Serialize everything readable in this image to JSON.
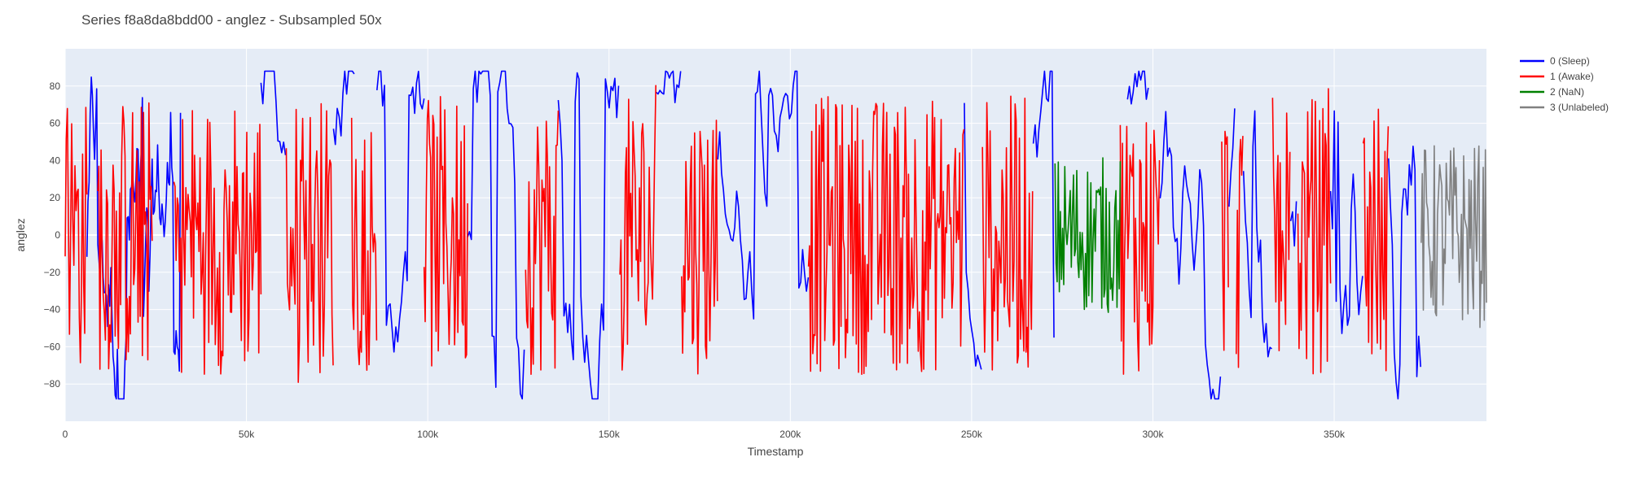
{
  "chart_data": {
    "type": "line",
    "title": "Series f8a8da8bdd00 - anglez - Subsampled 50x",
    "xlabel": "Timestamp",
    "ylabel": "anglez",
    "xlim": [
      0,
      392000
    ],
    "ylim": [
      -100,
      100
    ],
    "x_ticks": [
      0,
      50000,
      100000,
      150000,
      200000,
      250000,
      300000,
      350000
    ],
    "x_tick_labels": [
      "0",
      "50k",
      "100k",
      "150k",
      "200k",
      "250k",
      "300k",
      "350k"
    ],
    "y_ticks": [
      -80,
      -60,
      -40,
      -20,
      0,
      20,
      40,
      60,
      80
    ],
    "y_tick_labels": [
      "−80",
      "−60",
      "−40",
      "−20",
      "0",
      "20",
      "40",
      "60",
      "80"
    ],
    "grid": true,
    "legend_position": "top-right",
    "series": [
      {
        "name": "0 (Sleep)",
        "color": "#0000ff",
        "segments": [
          [
            6000,
            32000
          ],
          [
            54000,
            61000
          ],
          [
            74000,
            80000
          ],
          [
            86000,
            99000
          ],
          [
            111000,
            127000
          ],
          [
            136000,
            153000
          ],
          [
            163000,
            170000
          ],
          [
            180000,
            205000
          ],
          [
            248000,
            253000
          ],
          [
            267000,
            273000
          ],
          [
            293000,
            299000
          ],
          [
            302000,
            319000
          ],
          [
            321000,
            323000
          ],
          [
            325000,
            333000
          ],
          [
            338000,
            340000
          ],
          [
            349000,
            358000
          ],
          [
            365000,
            374000
          ]
        ],
        "segment_styles": [
          "lowmix",
          "high",
          "high",
          "high",
          "mid",
          "high",
          "high",
          "high",
          "high",
          "high",
          "high",
          "mid",
          "mid",
          "mid",
          "mid",
          "mid",
          "mid"
        ]
      },
      {
        "name": "1 (Awake)",
        "color": "#ff0000",
        "segments": [
          [
            0,
            6000
          ],
          [
            9000,
            24000
          ],
          [
            30000,
            54000
          ],
          [
            61000,
            74000
          ],
          [
            79000,
            86000
          ],
          [
            99000,
            111000
          ],
          [
            127000,
            136000
          ],
          [
            153000,
            163000
          ],
          [
            170000,
            180000
          ],
          [
            205000,
            248000
          ],
          [
            253000,
            267000
          ],
          [
            291000,
            302000
          ],
          [
            319000,
            321000
          ],
          [
            323000,
            325000
          ],
          [
            333000,
            338000
          ],
          [
            340000,
            349000
          ],
          [
            358000,
            365000
          ]
        ],
        "segment_styles": [
          "red",
          "red",
          "red",
          "red",
          "red",
          "red",
          "red",
          "red",
          "red",
          "red",
          "red",
          "red",
          "red",
          "red",
          "red",
          "red",
          "red"
        ]
      },
      {
        "name": "2 (NaN)",
        "color": "#008000",
        "segments": [
          [
            273000,
            291000
          ]
        ],
        "segment_styles": [
          "green"
        ]
      },
      {
        "name": "3 (Unlabeled)",
        "color": "#808080",
        "segments": [
          [
            374000,
            392000
          ]
        ],
        "segment_styles": [
          "gray"
        ]
      }
    ]
  }
}
